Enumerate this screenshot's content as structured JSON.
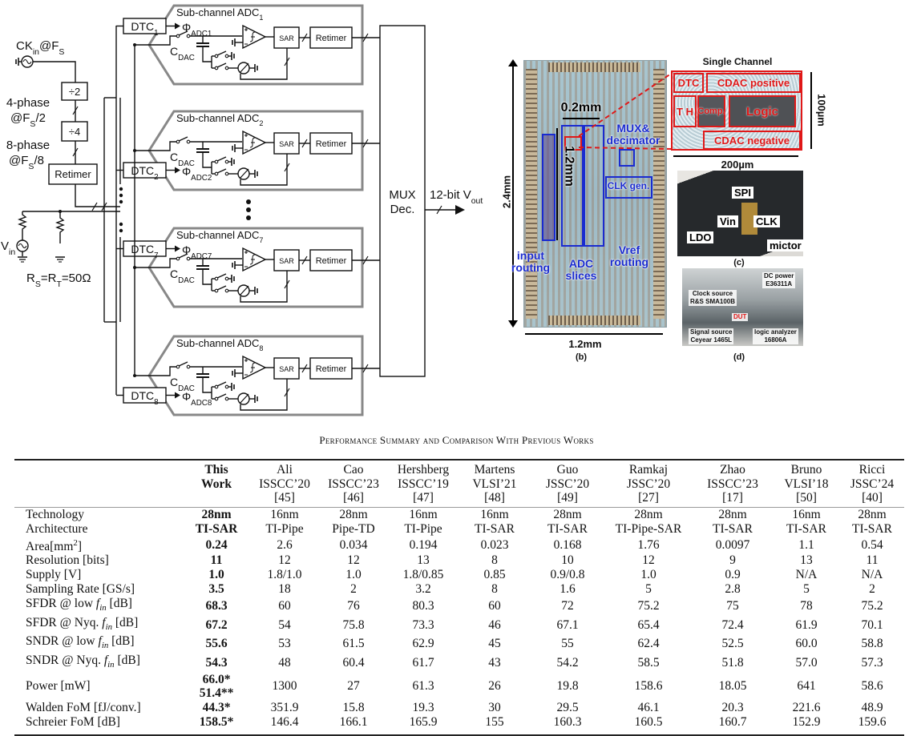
{
  "schematic": {
    "clock_input": "CK_{in}@F_{S}",
    "div2": "÷2",
    "div4": "÷4",
    "phase4": [
      "4-phase",
      "@F_{S}/2"
    ],
    "phase8": [
      "8-phase",
      "@F_{S}/8"
    ],
    "clock_retimer": "Retimer",
    "vin": "V_{in}",
    "termination": "R_{S}=R_{T}=50Ω",
    "channels": [
      {
        "title": "Sub-channel ADC_{1}",
        "dtc": "DTC_{1}",
        "phi": "Φ_{ADC1}",
        "cdac": "C_{DAC}",
        "sar": "SAR",
        "retimer": "Retimer"
      },
      {
        "title": "Sub-channel ADC_{2}",
        "dtc": "DTC_{2}",
        "phi": "Φ_{ADC2}",
        "cdac": "C_{DAC}",
        "sar": "SAR",
        "retimer": "Retimer"
      },
      {
        "title": "Sub-channel ADC_{7}",
        "dtc": "DTC_{7}",
        "phi": "Φ_{ADC7}",
        "cdac": "C_{DAC}",
        "sar": "SAR",
        "retimer": "Retimer"
      },
      {
        "title": "Sub-channel ADC_{8}",
        "dtc": "DTC_{8}",
        "phi": "Φ_{ADC8}",
        "cdac": "C_{DAC}",
        "sar": "SAR",
        "retimer": "Retimer"
      }
    ],
    "mux": [
      "MUX",
      "Dec."
    ],
    "output": "12-bit V_{out}"
  },
  "die_photo": {
    "height_dim": "2.4mm",
    "width_dim": "1.2mm",
    "slice_width": "0.2mm",
    "slice_height": "1.2mm",
    "labels": {
      "mux_decimator": [
        "MUX&",
        "decimator"
      ],
      "clk_gen": "CLK gen.",
      "input_routing": [
        "input",
        "routing"
      ],
      "adc_slices": [
        "ADC",
        "slices"
      ],
      "vref_routing": [
        "Vref",
        "routing"
      ]
    },
    "caption": "(b)",
    "box_color": "#1a2bd0",
    "highlight_color": "#e01818"
  },
  "single_channel": {
    "title": "Single Channel",
    "blocks": {
      "dtc": "DTC",
      "cdac_pos": "CDAC positive",
      "th": "T H",
      "comp": "Comp.",
      "logic": "Logic",
      "cdac_neg": "CDAC negative"
    },
    "height_dim": "100µm",
    "width_dim": "200µm"
  },
  "pcb_photo": {
    "labels": {
      "spi": "SPI",
      "vin": "Vin",
      "clk": "CLK",
      "ldo": "LDO",
      "mictor": "mictor"
    },
    "caption": "(c)"
  },
  "setup_photo": {
    "labels": {
      "dc_power": [
        "DC power",
        "E36311A"
      ],
      "clock_source": [
        "Clock source",
        "R&S SMA100B"
      ],
      "dut": "DUT",
      "signal_source": [
        "Signal source",
        "Ceyear 1465L"
      ],
      "logic_analyzer": [
        "logic analyzer",
        "16806A"
      ]
    },
    "caption": "(d)"
  },
  "table": {
    "caption": "Performance Summary and Comparison With Previous Works",
    "columns": [
      [
        "This",
        "Work"
      ],
      [
        "Ali",
        "ISSCC’20",
        "[45]"
      ],
      [
        "Cao",
        "ISSCC’23",
        "[46]"
      ],
      [
        "Hershberg",
        "ISSCC’19",
        "[47]"
      ],
      [
        "Martens",
        "VLSI’21",
        "[48]"
      ],
      [
        "Guo",
        "JSSC’20",
        "[49]"
      ],
      [
        "Ramkaj",
        "JSSC’20",
        "[27]"
      ],
      [
        "Zhao",
        "ISSCC’23",
        "[17]"
      ],
      [
        "Bruno",
        "VLSI’18",
        "[50]"
      ],
      [
        "Ricci",
        "JSSC’24",
        "[40]"
      ]
    ],
    "rows": [
      {
        "label": "Technology",
        "values": [
          "28nm",
          "16nm",
          "28nm",
          "16nm",
          "16nm",
          "28nm",
          "28nm",
          "28nm",
          "16nm",
          "28nm"
        ]
      },
      {
        "label": "Architecture",
        "values": [
          "TI-SAR",
          "TI-Pipe",
          "Pipe-TD",
          "TI-Pipe",
          "TI-SAR",
          "TI-SAR",
          "TI-Pipe-SAR",
          "TI-SAR",
          "TI-SAR",
          "TI-SAR"
        ]
      },
      {
        "label": "Area[mm^{2}]",
        "values": [
          "0.24",
          "2.6",
          "0.034",
          "0.194",
          "0.023",
          "0.168",
          "1.76",
          "0.0097",
          "1.1",
          "0.54"
        ]
      },
      {
        "label": "Resolution [bits]",
        "values": [
          "11",
          "12",
          "12",
          "13",
          "8",
          "10",
          "12",
          "9",
          "13",
          "11"
        ]
      },
      {
        "label": "Supply [V]",
        "values": [
          "1.0",
          "1.8/1.0",
          "1.0",
          "1.8/0.85",
          "0.85",
          "0.9/0.8",
          "1.0",
          "0.9",
          "N/A",
          "N/A"
        ]
      },
      {
        "label": "Sampling Rate [GS/s]",
        "values": [
          "3.5",
          "18",
          "2",
          "3.2",
          "8",
          "1.6",
          "5",
          "2.8",
          "5",
          "2"
        ]
      },
      {
        "label": "SFDR @ low $f_{in}$ [dB]",
        "values": [
          "68.3",
          "60",
          "76",
          "80.3",
          "60",
          "72",
          "75.2",
          "75",
          "78",
          "75.2"
        ]
      },
      {
        "label": "SFDR @ Nyq. $f_{in}$ [dB]",
        "values": [
          "67.2",
          "54",
          "75.8",
          "73.3",
          "46",
          "67.1",
          "65.4",
          "72.4",
          "61.9",
          "70.1"
        ]
      },
      {
        "label": "SNDR @ low $f_{in}$ [dB]",
        "values": [
          "55.6",
          "53",
          "61.5",
          "62.9",
          "45",
          "55",
          "62.4",
          "52.5",
          "60.0",
          "58.8"
        ]
      },
      {
        "label": "SNDR @ Nyq. $f_{in}$ [dB]",
        "values": [
          "54.3",
          "48",
          "60.4",
          "61.7",
          "43",
          "54.2",
          "58.5",
          "51.8",
          "57.0",
          "57.3"
        ]
      },
      {
        "label": "Power [mW]",
        "values": [
          [
            "66.0*",
            "51.4**"
          ],
          "1300",
          "27",
          "61.3",
          "26",
          "19.8",
          "158.6",
          "18.05",
          "641",
          "58.6"
        ]
      },
      {
        "label": "Walden FoM [fJ/conv.]",
        "values": [
          "44.3*",
          "351.9",
          "15.8",
          "19.3",
          "30",
          "29.5",
          "46.1",
          "20.3",
          "221.6",
          "48.9"
        ]
      },
      {
        "label": "Schreier FoM [dB]",
        "values": [
          "158.5*",
          "146.4",
          "166.1",
          "165.9",
          "155",
          "160.3",
          "160.5",
          "160.7",
          "152.9",
          "159.6"
        ]
      }
    ]
  }
}
